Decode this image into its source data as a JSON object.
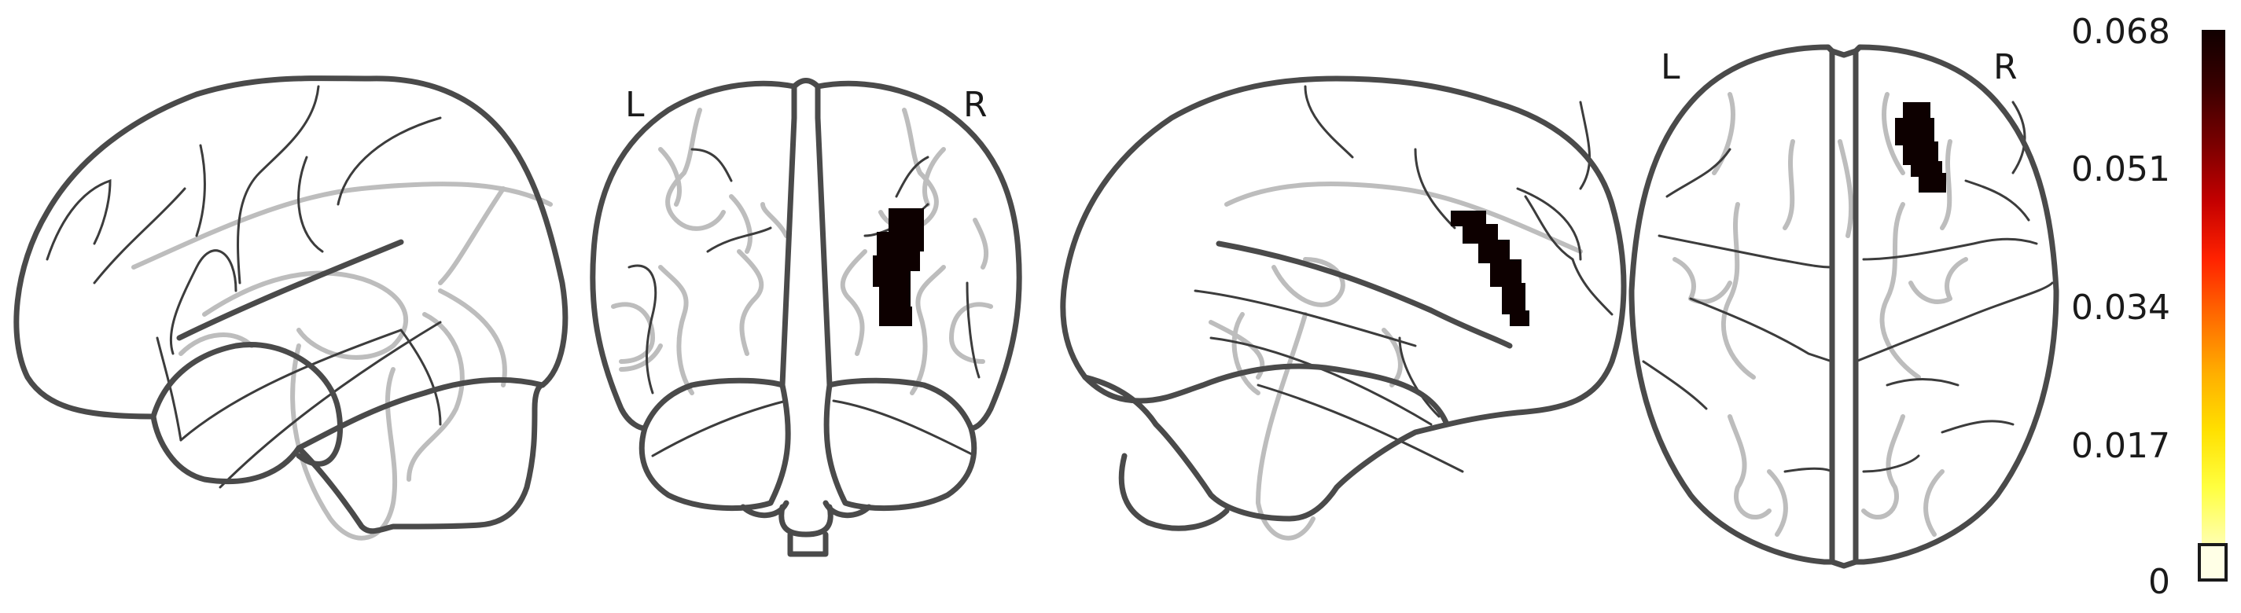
{
  "views": {
    "coronal": {
      "left_label": "L",
      "right_label": "R"
    },
    "axial": {
      "left_label": "L",
      "right_label": "R"
    }
  },
  "colorbar": {
    "ticks": [
      "0.068",
      "0.051",
      "0.034",
      "0.017",
      "0"
    ],
    "colors": [
      "#100000",
      "#3a0000",
      "#7a0000",
      "#c40000",
      "#ff2200",
      "#ff6a00",
      "#ffae00",
      "#ffe000",
      "#ffff40",
      "#ffffb0"
    ]
  }
}
